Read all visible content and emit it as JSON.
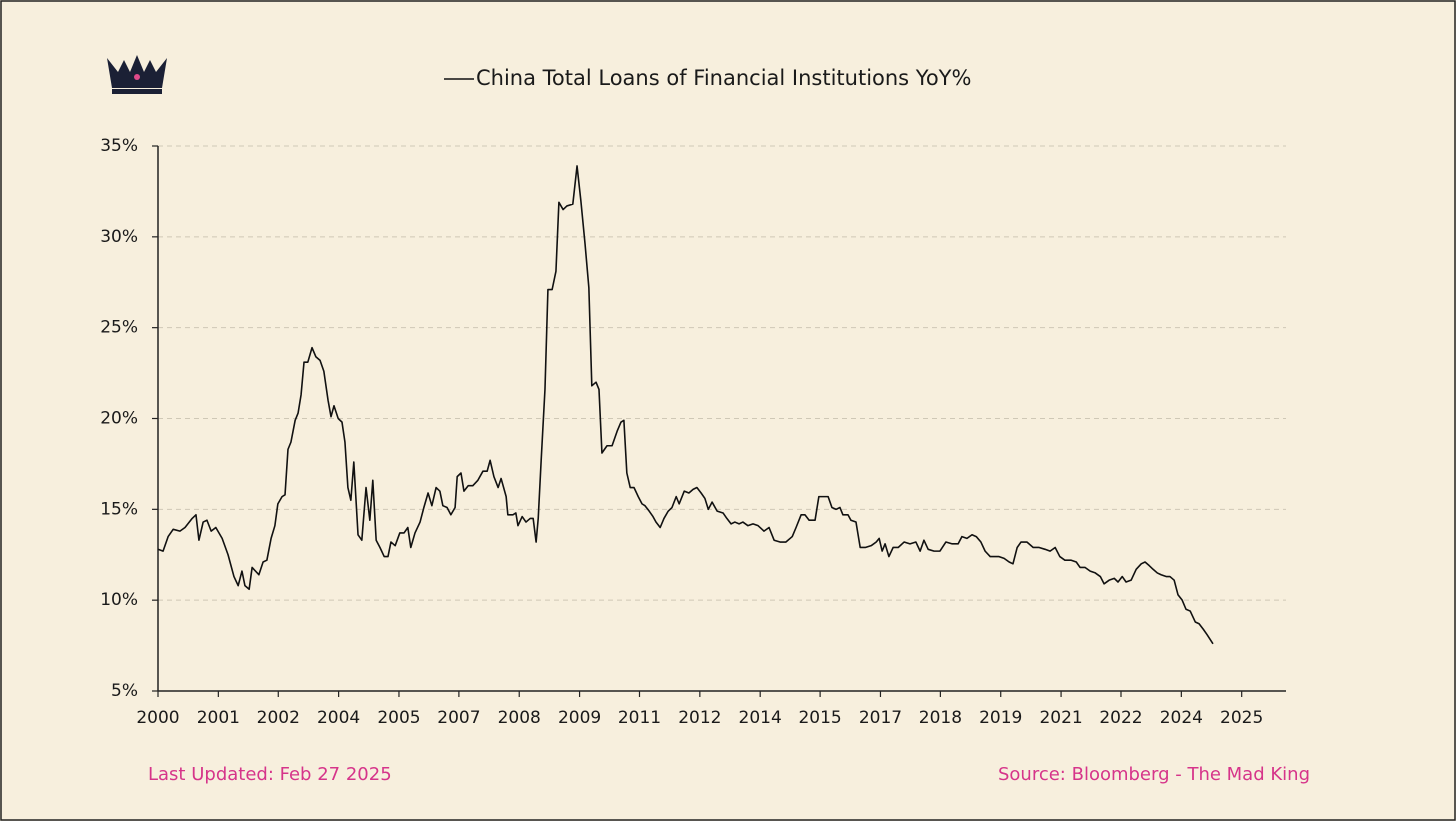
{
  "chart_data": {
    "type": "line",
    "x": [
      2000.0,
      2000.12,
      2000.24,
      2000.36,
      2000.52,
      2000.64,
      2000.81,
      2000.9,
      2000.97,
      2001.07,
      2001.16,
      2001.26,
      2001.37,
      2001.52,
      2001.66,
      2001.8,
      2001.9,
      2001.99,
      2002.06,
      2002.16,
      2002.23,
      2002.39,
      2002.49,
      2002.58,
      2002.68,
      2002.77,
      2002.84,
      2002.94,
      2003.01,
      2003.08,
      2003.15,
      2003.25,
      2003.32,
      2003.39,
      2003.46,
      2003.55,
      2003.65,
      2003.74,
      2003.84,
      2003.93,
      2004.03,
      2004.1,
      2004.17,
      2004.27,
      2004.36,
      2004.43,
      2004.5,
      2004.57,
      2004.64,
      2004.74,
      2004.83,
      2004.93,
      2005.02,
      2005.09,
      2005.17,
      2005.26,
      2005.36,
      2005.45,
      2005.52,
      2005.62,
      2005.73,
      2005.83,
      2005.92,
      2005.99,
      2006.09,
      2006.21,
      2006.3,
      2006.4,
      2006.49,
      2006.59,
      2006.68,
      2006.75,
      2006.85,
      2006.94,
      2007.04,
      2007.09,
      2007.18,
      2007.25,
      2007.35,
      2007.46,
      2007.58,
      2007.7,
      2007.8,
      2007.87,
      2007.96,
      2008.06,
      2008.13,
      2008.25,
      2008.29,
      2008.41,
      2008.48,
      2008.53,
      2008.63,
      2008.72,
      2008.82,
      2008.89,
      2008.96,
      2009.01,
      2009.08,
      2009.17,
      2009.24,
      2009.34,
      2009.43,
      2009.5,
      2009.6,
      2009.69,
      2009.83,
      2009.93,
      2010.02,
      2010.12,
      2010.21,
      2010.28,
      2010.38,
      2010.45,
      2010.52,
      2010.64,
      2010.76,
      2010.88,
      2010.97,
      2011.04,
      2011.11,
      2011.19,
      2011.28,
      2011.38,
      2011.47,
      2011.54,
      2011.64,
      2011.73,
      2011.8,
      2011.9,
      2011.99,
      2012.09,
      2012.18,
      2012.28,
      2012.35,
      2012.47,
      2012.58,
      2012.68,
      2012.77,
      2012.87,
      2012.96,
      2013.04,
      2013.13,
      2013.25,
      2013.39,
      2013.48,
      2013.58,
      2013.67,
      2013.77,
      2013.86,
      2013.98,
      2014.1,
      2014.22,
      2014.36,
      2014.48,
      2014.6,
      2014.74,
      2014.88,
      2015.03,
      2015.12,
      2015.24,
      2015.33,
      2015.43,
      2015.57,
      2015.66,
      2015.78,
      2015.88,
      2015.97,
      2016.07,
      2016.16,
      2016.23,
      2016.35,
      2016.42,
      2016.54,
      2016.64,
      2016.76,
      2016.9,
      2017.02,
      2017.09,
      2017.16,
      2017.23,
      2017.32,
      2017.42,
      2017.54,
      2017.68,
      2017.82,
      2017.96,
      2018.06,
      2018.15,
      2018.25,
      2018.39,
      2018.53,
      2018.67,
      2018.82,
      2018.96,
      2019.05,
      2019.17,
      2019.29,
      2019.39,
      2019.5,
      2019.6,
      2019.72,
      2019.81,
      2019.93,
      2020.05,
      2020.17,
      2020.26,
      2020.36,
      2020.45,
      2020.59,
      2020.74,
      2020.88,
      2021.02,
      2021.14,
      2021.26,
      2021.37,
      2021.49,
      2021.64,
      2021.76,
      2021.85,
      2021.97,
      2022.09,
      2022.21,
      2022.33,
      2022.42,
      2022.54,
      2022.66,
      2022.75,
      2022.85,
      2022.94,
      2023.06,
      2023.18,
      2023.3,
      2023.39,
      2023.49,
      2023.58,
      2023.68,
      2023.77,
      2023.89,
      2023.98,
      2024.08,
      2024.17,
      2024.27,
      2024.36,
      2024.46,
      2024.58,
      2024.67,
      2024.77,
      2024.86,
      2025.0
    ],
    "series": [
      {
        "name": "China Total Loans of Financial Institutions YoY%",
        "color": "#111111",
        "values": [
          12.8,
          12.7,
          13.5,
          13.9,
          13.8,
          14.0,
          14.5,
          14.7,
          13.3,
          14.3,
          14.4,
          13.8,
          14.0,
          13.4,
          12.5,
          11.3,
          10.8,
          11.6,
          10.8,
          10.6,
          11.8,
          11.4,
          12.1,
          12.2,
          13.4,
          14.1,
          15.3,
          15.7,
          15.8,
          18.3,
          18.7,
          19.9,
          20.3,
          21.3,
          23.1,
          23.1,
          23.9,
          23.4,
          23.2,
          22.6,
          21.0,
          20.1,
          20.7,
          20.0,
          19.8,
          18.7,
          16.2,
          15.5,
          17.6,
          13.6,
          13.3,
          16.2,
          14.4,
          16.6,
          13.3,
          12.9,
          12.4,
          12.4,
          13.2,
          13.0,
          13.7,
          13.7,
          14.0,
          12.9,
          13.7,
          14.3,
          15.1,
          15.9,
          15.2,
          16.2,
          16.0,
          15.2,
          15.1,
          14.7,
          15.1,
          16.8,
          17.0,
          16.0,
          16.3,
          16.3,
          16.6,
          17.1,
          17.1,
          17.7,
          16.8,
          16.2,
          16.7,
          15.7,
          14.7,
          14.7,
          14.8,
          14.1,
          14.6,
          14.3,
          14.5,
          14.5,
          13.2,
          14.5,
          17.7,
          21.6,
          27.1,
          27.1,
          28.1,
          31.9,
          31.5,
          31.7,
          31.8,
          33.9,
          32.0,
          29.6,
          27.2,
          21.8,
          22.0,
          21.6,
          18.1,
          18.5,
          18.5,
          19.3,
          19.8,
          19.9,
          17.0,
          16.2,
          16.2,
          15.7,
          15.3,
          15.2,
          14.9,
          14.6,
          14.3,
          14.0,
          14.5,
          14.9,
          15.1,
          15.7,
          15.3,
          16.0,
          15.9,
          16.1,
          16.2,
          15.9,
          15.6,
          15.0,
          15.4,
          14.9,
          14.8,
          14.5,
          14.2,
          14.3,
          14.2,
          14.3,
          14.1,
          14.2,
          14.1,
          13.8,
          14.0,
          13.3,
          13.2,
          13.2,
          13.5,
          14.0,
          14.7,
          14.7,
          14.4,
          14.4,
          15.7,
          15.7,
          15.7,
          15.1,
          15.0,
          15.1,
          14.7,
          14.7,
          14.4,
          14.3,
          12.9,
          12.9,
          13.0,
          13.2,
          13.4,
          12.7,
          13.1,
          12.4,
          12.9,
          12.9,
          13.2,
          13.1,
          13.2,
          12.7,
          13.3,
          12.8,
          12.7,
          12.7,
          13.2,
          13.1,
          13.1,
          13.5,
          13.4,
          13.6,
          13.5,
          13.2,
          12.7,
          12.4,
          12.4,
          12.4,
          12.3,
          12.1,
          12.0,
          12.9,
          13.2,
          13.2,
          12.9,
          12.9,
          12.8,
          12.7,
          12.9,
          12.4,
          12.2,
          12.2,
          12.1,
          11.8,
          11.8,
          11.6,
          11.5,
          11.3,
          10.9,
          11.1,
          11.2,
          11.0,
          11.3,
          11.0,
          11.1,
          11.7,
          12.0,
          12.1,
          11.9,
          11.7,
          11.5,
          11.4,
          11.3,
          11.3,
          11.1,
          10.3,
          10.0,
          9.5,
          9.4,
          8.8,
          8.7,
          8.4,
          8.1,
          7.6
        ]
      }
    ],
    "xlim": [
      2000,
      2026.73
    ],
    "xticks": [
      2000,
      {
        "value": 2001.43,
        "label": "2001"
      },
      {
        "value": 2002.85,
        "label": "2002"
      },
      {
        "value": 2004.28,
        "label": "2004"
      },
      {
        "value": 2005.71,
        "label": "2005"
      },
      {
        "value": 2007.13,
        "label": "2007"
      },
      {
        "value": 2008.56,
        "label": "2008"
      },
      {
        "value": 2009.99,
        "label": "2009"
      },
      {
        "value": 2011.41,
        "label": "2011"
      },
      {
        "value": 2012.84,
        "label": "2012"
      },
      {
        "value": 2014.27,
        "label": "2014"
      },
      {
        "value": 2015.69,
        "label": "2015"
      },
      {
        "value": 2017.12,
        "label": "2017"
      },
      {
        "value": 2018.54,
        "label": "2018"
      },
      {
        "value": 2019.97,
        "label": "2019"
      },
      {
        "value": 2021.4,
        "label": "2021"
      },
      {
        "value": 2022.82,
        "label": "2022"
      },
      {
        "value": 2024.25,
        "label": "2024"
      },
      {
        "value": 2025.68,
        "label": "2025"
      }
    ],
    "ylim": [
      5,
      35
    ],
    "yticks": [
      {
        "value": 5,
        "label": "5%"
      },
      {
        "value": 10,
        "label": "10%"
      },
      {
        "value": 15,
        "label": "15%"
      },
      {
        "value": 20,
        "label": "20%"
      },
      {
        "value": 25,
        "label": "25%"
      },
      {
        "value": 30,
        "label": "30%"
      },
      {
        "value": 35,
        "label": "35%"
      }
    ],
    "grid": true,
    "legend": "top",
    "footer_left": "Last Updated: Feb 27 2025",
    "footer_right": "Source: Bloomberg - The Mad King"
  }
}
